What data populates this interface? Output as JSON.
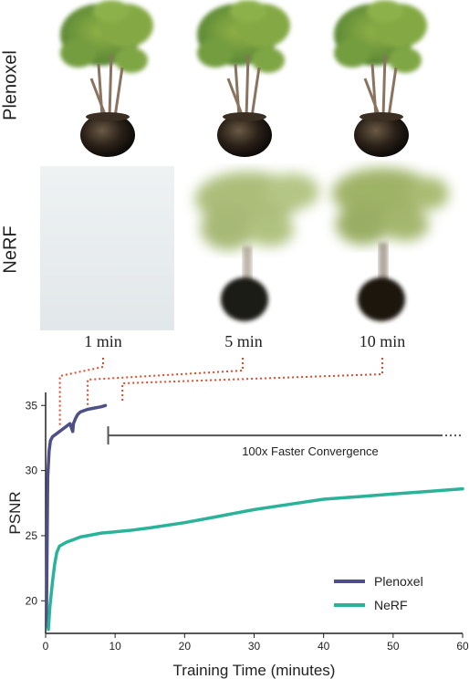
{
  "rows": {
    "top_label": "Plenoxel",
    "bottom_label": "NeRF"
  },
  "time_labels": [
    "1 min",
    "5 min",
    "10 min"
  ],
  "annotation": "100x Faster Convergence",
  "colors": {
    "plenoxel": "#4d4f86",
    "nerf": "#2bb39a",
    "connector": "#e04a2a",
    "axis": "#222222"
  },
  "chart_data": {
    "type": "line",
    "title": "",
    "xlabel": "Training Time (minutes)",
    "ylabel": "PSNR",
    "xlim": [
      0,
      60
    ],
    "ylim": [
      17.5,
      36
    ],
    "xticks": [
      0,
      10,
      20,
      30,
      40,
      50,
      60
    ],
    "yticks": [
      20,
      25,
      30,
      35
    ],
    "legend": "bottom-right",
    "series": [
      {
        "name": "Plenoxel",
        "x": [
          0.1,
          0.3,
          0.5,
          0.7,
          1.0,
          1.5,
          2.0,
          2.5,
          3.0,
          3.5,
          3.9,
          4.0,
          4.3,
          4.6,
          5.0,
          5.5,
          6.0,
          7.0,
          8.0,
          8.6
        ],
        "y": [
          18.0,
          29.5,
          31.5,
          32.3,
          32.6,
          32.8,
          33.0,
          33.2,
          33.4,
          33.6,
          33.0,
          33.6,
          34.0,
          34.3,
          34.5,
          34.6,
          34.7,
          34.8,
          34.9,
          35.0
        ]
      },
      {
        "name": "NeRF",
        "x": [
          0.4,
          0.6,
          0.8,
          1.0,
          1.3,
          1.6,
          2.0,
          3.0,
          4.0,
          5.0,
          6.0,
          8.0,
          10.0,
          12.0,
          15.0,
          20.0,
          25.0,
          30.0,
          35.0,
          40.0,
          45.0,
          50.0,
          55.0,
          60.0
        ],
        "y": [
          17.8,
          19.5,
          20.5,
          21.5,
          22.8,
          23.7,
          24.2,
          24.5,
          24.7,
          24.9,
          25.0,
          25.2,
          25.3,
          25.4,
          25.6,
          26.0,
          26.5,
          27.0,
          27.4,
          27.8,
          28.0,
          28.2,
          28.4,
          28.6
        ]
      }
    ],
    "bracket_x": [
      9,
      60
    ]
  }
}
